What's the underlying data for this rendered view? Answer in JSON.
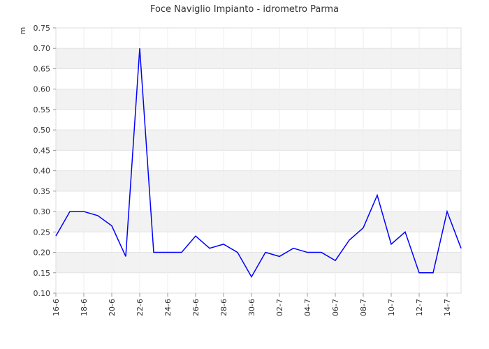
{
  "chart_data": {
    "type": "line",
    "title": "Foce Naviglio Impianto - idrometro Parma",
    "ylabel": "m",
    "xlabel": "",
    "ylim": [
      0.1,
      0.75
    ],
    "yticks": [
      "0.10",
      "0.15",
      "0.20",
      "0.25",
      "0.30",
      "0.35",
      "0.40",
      "0.45",
      "0.50",
      "0.55",
      "0.60",
      "0.65",
      "0.70",
      "0.75"
    ],
    "xticks": [
      "16-6",
      "18-6",
      "20-6",
      "22-6",
      "24-6",
      "26-6",
      "28-6",
      "30-6",
      "02-7",
      "04-7",
      "06-7",
      "08-7",
      "10-7",
      "12-7",
      "14-7"
    ],
    "grid": "alternating horizontal bands",
    "series": [
      {
        "color": "#0000ff",
        "values": [
          0.24,
          0.3,
          0.3,
          0.29,
          0.265,
          0.19,
          0.7,
          0.2,
          0.2,
          0.2,
          0.24,
          0.21,
          0.22,
          0.2,
          0.14,
          0.2,
          0.19,
          0.21,
          0.2,
          0.2,
          0.18,
          0.23,
          0.26,
          0.34,
          0.22,
          0.25,
          0.15,
          0.15,
          0.3,
          0.21
        ]
      }
    ],
    "colors": {
      "band": "#f2f2f2",
      "axis": "#cccccc",
      "line": "#0000ff"
    }
  }
}
